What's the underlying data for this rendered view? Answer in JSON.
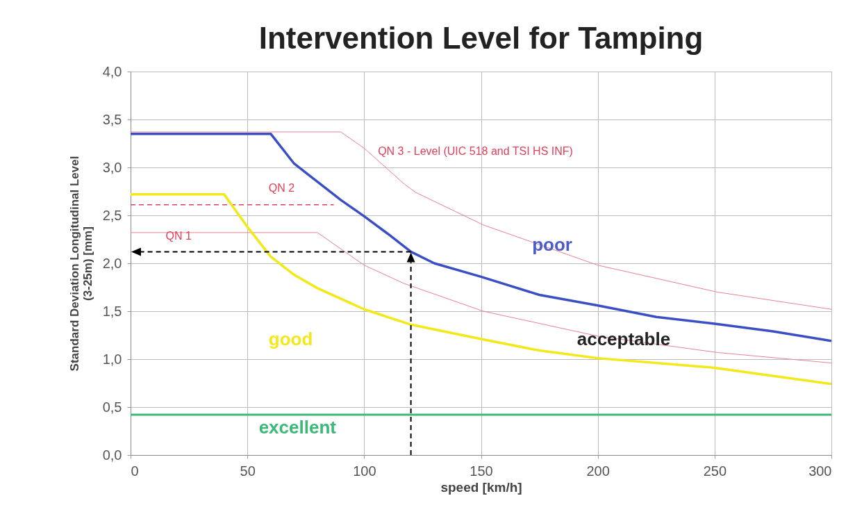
{
  "chart_data": {
    "type": "line",
    "title": "Intervention Level for Tamping",
    "xlabel": "speed [km/h]",
    "ylabel": "Standard Deviation Longitudinal Level\n(3-25m)   [mm]",
    "xlim": [
      0,
      300
    ],
    "xticks": [
      0,
      50,
      100,
      150,
      200,
      250,
      300
    ],
    "ylim": [
      0,
      4
    ],
    "yticks": [
      {
        "value": 0,
        "label": "0,0"
      },
      {
        "value": 0.5,
        "label": "0,5"
      },
      {
        "value": 1,
        "label": "1,0"
      },
      {
        "value": 1.5,
        "label": "1,5"
      },
      {
        "value": 2,
        "label": "2,0"
      },
      {
        "value": 2.5,
        "label": "2,5"
      },
      {
        "value": 3,
        "label": "3,0"
      },
      {
        "value": 3.5,
        "label": "3,5"
      },
      {
        "value": 4,
        "label": "4,0"
      }
    ],
    "grid": true,
    "marker": "none",
    "series": [
      {
        "color": "#e8808f",
        "x": [
          0,
          90,
          100,
          117,
          122,
          151,
          200,
          251,
          300
        ],
        "values": [
          3.37,
          3.37,
          3.2,
          2.83,
          2.74,
          2.4,
          1.98,
          1.7,
          1.52
        ]
      },
      {
        "color": "#e8808f",
        "x": [
          0,
          80,
          90,
          100,
          117,
          151,
          200,
          251,
          300
        ],
        "values": [
          2.32,
          2.32,
          2.15,
          1.98,
          1.79,
          1.5,
          1.24,
          1.07,
          0.96
        ]
      },
      {
        "color": "#e0405a",
        "line_style": "dashed",
        "x": [
          0,
          87
        ],
        "values": [
          2.61,
          2.61
        ]
      },
      {
        "color": "#3a4fc4",
        "x": [
          0,
          60,
          70,
          80,
          90,
          100,
          110,
          120,
          130,
          150,
          175,
          200,
          225,
          250,
          275,
          300
        ],
        "values": [
          3.35,
          3.35,
          3.04,
          2.85,
          2.66,
          2.49,
          2.31,
          2.12,
          2.0,
          1.86,
          1.67,
          1.56,
          1.44,
          1.37,
          1.29,
          1.19
        ]
      },
      {
        "color": "#f2e81a",
        "x": [
          0,
          40,
          50,
          60,
          70,
          80,
          100,
          120,
          150,
          175,
          200,
          250,
          300
        ],
        "values": [
          2.72,
          2.72,
          2.38,
          2.07,
          1.88,
          1.74,
          1.52,
          1.36,
          1.21,
          1.09,
          1.01,
          0.91,
          0.74
        ]
      },
      {
        "color": "#3cb878",
        "x": [
          0,
          300
        ],
        "values": [
          0.42,
          0.42
        ]
      }
    ],
    "annotations": [
      "QN 3 - Level (UIC 518 and TSI HS INF)",
      "QN 2",
      "QN 1",
      "poor",
      "acceptable",
      "good",
      "excellent"
    ]
  }
}
